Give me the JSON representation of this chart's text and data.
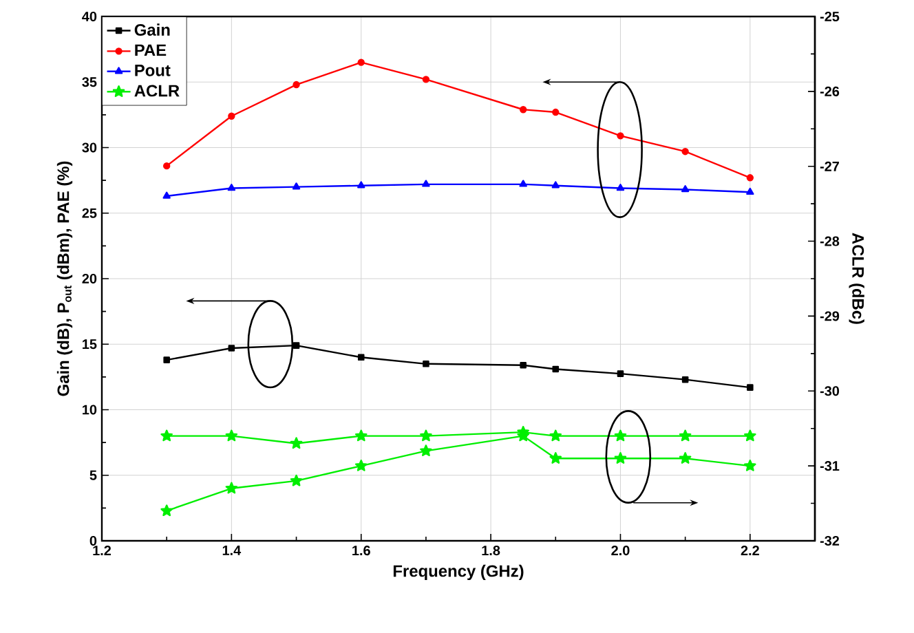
{
  "chart_data": {
    "type": "line",
    "xlabel": "Frequency (GHz)",
    "ylabel": "Gain (dB), P$_{out}$ (dBm), PAE (%)",
    "y2label": "ACLR (dBc)",
    "x": [
      1.3,
      1.4,
      1.5,
      1.6,
      1.7,
      1.85,
      1.9,
      2.0,
      2.1,
      2.2
    ],
    "series": [
      {
        "name": "Gain",
        "color": "#000000",
        "marker": "square",
        "values": [
          13.8,
          14.7,
          14.9,
          14.0,
          13.5,
          13.4,
          13.1,
          12.75,
          12.3,
          11.7
        ]
      },
      {
        "name": "PAE",
        "color": "#ff0000",
        "marker": "circle",
        "values": [
          28.6,
          32.4,
          34.8,
          36.5,
          35.2,
          32.9,
          32.7,
          30.9,
          29.7,
          27.7
        ]
      },
      {
        "name": "Pout",
        "color": "#0000ff",
        "marker": "triangle",
        "values": [
          26.3,
          26.9,
          27.0,
          27.1,
          27.2,
          27.2,
          27.1,
          26.9,
          26.8,
          26.6
        ]
      },
      {
        "name": "ACLR",
        "color": "#00ee00",
        "marker": "star",
        "axis": "y2",
        "values": [
          -30.6,
          -30.6,
          -30.7,
          -30.6,
          -30.6,
          -30.55,
          -30.6,
          -30.6,
          -30.6,
          -30.6
        ]
      },
      {
        "color": "#00ee00",
        "marker": "star",
        "axis": "y2",
        "values": [
          -31.6,
          -31.3,
          -31.2,
          -31.0,
          -30.8,
          -30.6,
          -30.9,
          -30.9,
          -30.9,
          -31.0
        ]
      }
    ],
    "xlim": [
      1.2,
      2.3
    ],
    "xticks": [
      1.2,
      1.4,
      1.6,
      1.8,
      {
        "value": 2.0,
        "label": "2.0"
      },
      2.2
    ],
    "ylim": [
      0,
      40
    ],
    "yticks": [
      0,
      5,
      10,
      15,
      20,
      25,
      30,
      35,
      40
    ],
    "y2lim": [
      -32,
      -25
    ],
    "y2ticks": [
      -32,
      -31,
      -30,
      -29,
      -28,
      -27,
      -26,
      -25
    ],
    "grid": true,
    "legend": "top left",
    "line_style": "solid"
  }
}
